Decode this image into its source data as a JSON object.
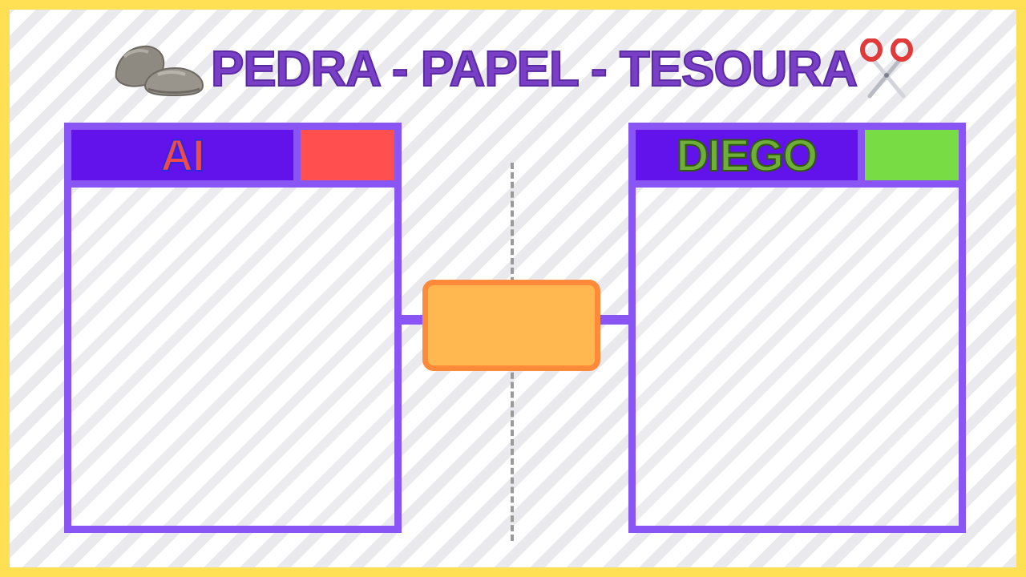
{
  "title": {
    "text": "PEDRA - PAPEL - TESOURA",
    "left_icon": "rock-icon",
    "right_icon": "scissors-icon"
  },
  "players": [
    {
      "name": "AI",
      "indicator_color": "#ff4f4f"
    },
    {
      "name": "DIEGO",
      "indicator_color": "#78dc45"
    }
  ],
  "result": {
    "text": ""
  },
  "colors": {
    "frame": "#ffe055",
    "panel_border": "#8a55f5",
    "name_background": "#6212ea",
    "title": "#7a3fc7",
    "result_fill": "#ffb84f",
    "result_border": "#ff8a3a"
  }
}
